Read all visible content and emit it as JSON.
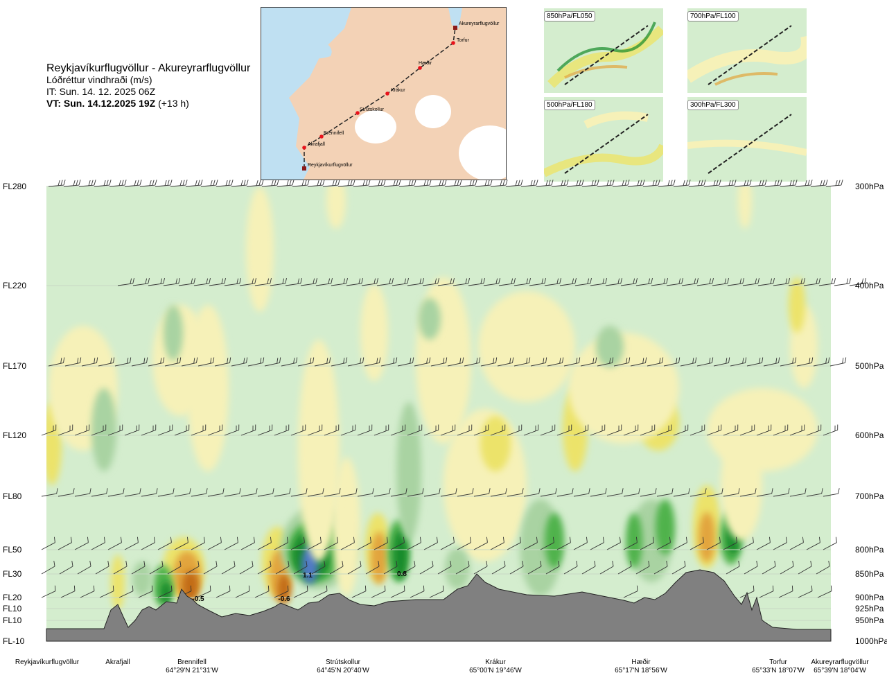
{
  "header": {
    "route": "Reykjavíkurflugvöllur - Akureyrarflugvöllur",
    "parameter": "Lóðréttur vindhraði (m/s)",
    "issue_time": "IT: Sun. 14. 12. 2025 06Z",
    "valid_time": "VT: Sun. 14.12.2025 19Z",
    "lead_time": "(+13 h)"
  },
  "map": {
    "waypoints": [
      "Akureyrarflugvöllur",
      "Torfur",
      "Hæðir",
      "Krákur",
      "Strútskollur",
      "Brennifell",
      "Akrafjall",
      "Reykjavíkurflugvöllur"
    ],
    "colors": {
      "land": "#f3d2b6",
      "water": "#bfe0f2",
      "ice": "#ffffff",
      "route": "#222222",
      "point": "#e8121b"
    }
  },
  "thumbnails": [
    "850hPa/FL050",
    "700hPa/FL100",
    "500hPa/FL180",
    "300hPa/FL300"
  ],
  "levels_left": [
    "FL280",
    "FL220",
    "FL170",
    "FL120",
    "FL80",
    "FL50",
    "FL30",
    "FL20",
    "FL10",
    "FL10",
    "FL-10"
  ],
  "levels_right": [
    "300hPa",
    "400hPa",
    "500hPa",
    "600hPa",
    "700hPa",
    "800hPa",
    "850hPa",
    "900hPa",
    "925hPa",
    "950hPa",
    "1000hPa"
  ],
  "locations": [
    {
      "name": "Reykjavíkurflugvöllur",
      "coord": ""
    },
    {
      "name": "Akrafjall",
      "coord": ""
    },
    {
      "name": "Brennifell",
      "coord": "64°29'N 21°31'W"
    },
    {
      "name": "Strútskollur",
      "coord": "64°45'N 20°40'W"
    },
    {
      "name": "Krákur",
      "coord": "65°00'N 19°46'W"
    },
    {
      "name": "Hæðir",
      "coord": "65°17'N 18°56'W"
    },
    {
      "name": "Torfur",
      "coord": "65°33'N 18°07'W"
    },
    {
      "name": "Akureyrarflugvöllur",
      "coord": "65°39'N 18°04'W"
    }
  ],
  "chart_data": {
    "type": "heatmap",
    "title": "Lóðréttur vindhraði (m/s)",
    "xlabel": "",
    "ylabel": "",
    "y_levels_hPa": [
      300,
      400,
      500,
      600,
      700,
      800,
      850,
      900,
      925,
      950,
      1000
    ],
    "annotations": [
      {
        "text": "-0.5",
        "near": "Brennifell",
        "level_hPa": 900
      },
      {
        "text": "-0.6",
        "near": "Strútskollur",
        "level_hPa": 900
      },
      {
        "text": "1.1",
        "near": "Strútskollur",
        "level_hPa": 850
      },
      {
        "text": "0.8",
        "near": "Strútskollur",
        "level_hPa": 850
      }
    ],
    "colors": {
      "background": "#d4edce",
      "weak_down": "#f6f1b8",
      "down": "#ece36a",
      "strong_down": "#e2a43c",
      "very_strong_down": "#c26c18",
      "weak_up": "#a9d3a2",
      "up": "#4fb24c",
      "strong_up": "#168a2a",
      "very_strong_up": "#4f79c4",
      "terrain": "#808080"
    }
  }
}
